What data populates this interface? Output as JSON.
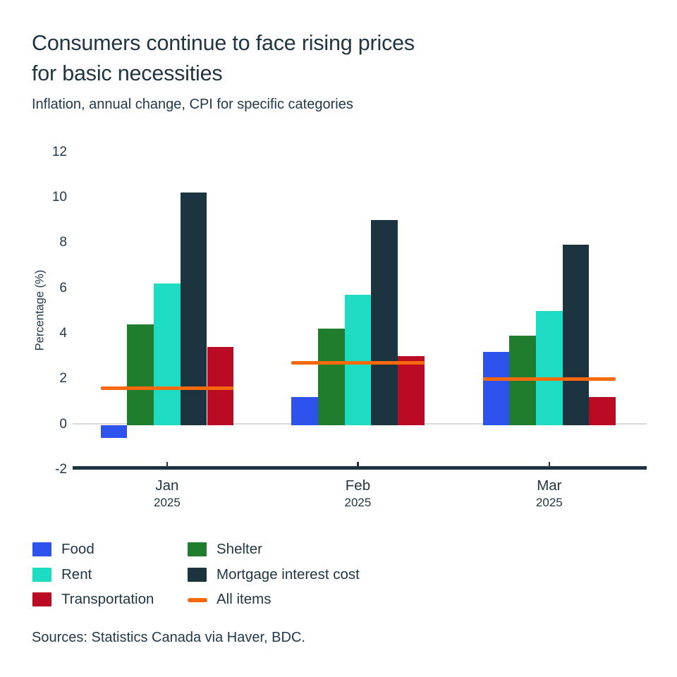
{
  "header": {
    "title_line1": "Consumers continue to face rising prices",
    "title_line2": "for basic necessities",
    "subtitle": "Inflation, annual change, CPI for specific categories"
  },
  "footer": {
    "sources": "Sources: Statistics Canada via Haver, BDC."
  },
  "colors": {
    "text_dark": "#1f3541",
    "axis": "#1d3340",
    "zero_gridline": "#d9d9d9",
    "background": "#ffffff"
  },
  "chart_data": {
    "type": "bar",
    "title": "Consumers continue to face rising prices for basic necessities",
    "subtitle": "Inflation, annual change, CPI for specific categories",
    "ylabel": "Percentage (%)",
    "xlabel": "",
    "ylim": [
      -2,
      12
    ],
    "yticks": [
      12,
      10,
      8,
      6,
      4,
      2,
      0,
      -2
    ],
    "grid": "zero-line-only",
    "legend_position": "bottom",
    "categories": [
      {
        "month": "Jan",
        "year": "2025"
      },
      {
        "month": "Feb",
        "year": "2025"
      },
      {
        "month": "Mar",
        "year": "2025"
      }
    ],
    "series": [
      {
        "name": "Food",
        "type": "bar",
        "color": "#2e53ec",
        "values": [
          -0.6,
          1.2,
          3.2
        ]
      },
      {
        "name": "Shelter",
        "type": "bar",
        "color": "#1f7d2d",
        "values": [
          4.4,
          4.2,
          3.9
        ]
      },
      {
        "name": "Rent",
        "type": "bar",
        "color": "#1edcc3",
        "values": [
          6.2,
          5.7,
          5.0
        ]
      },
      {
        "name": "Mortgage interest cost",
        "type": "bar",
        "color": "#1c3340",
        "values": [
          10.2,
          9.0,
          7.9
        ]
      },
      {
        "name": "Transportation",
        "type": "bar",
        "color": "#bb0a23",
        "values": [
          3.4,
          3.0,
          1.2
        ]
      },
      {
        "name": "All items",
        "type": "line",
        "color": "#f7690e",
        "values": [
          1.6,
          2.7,
          2.0
        ]
      }
    ]
  }
}
